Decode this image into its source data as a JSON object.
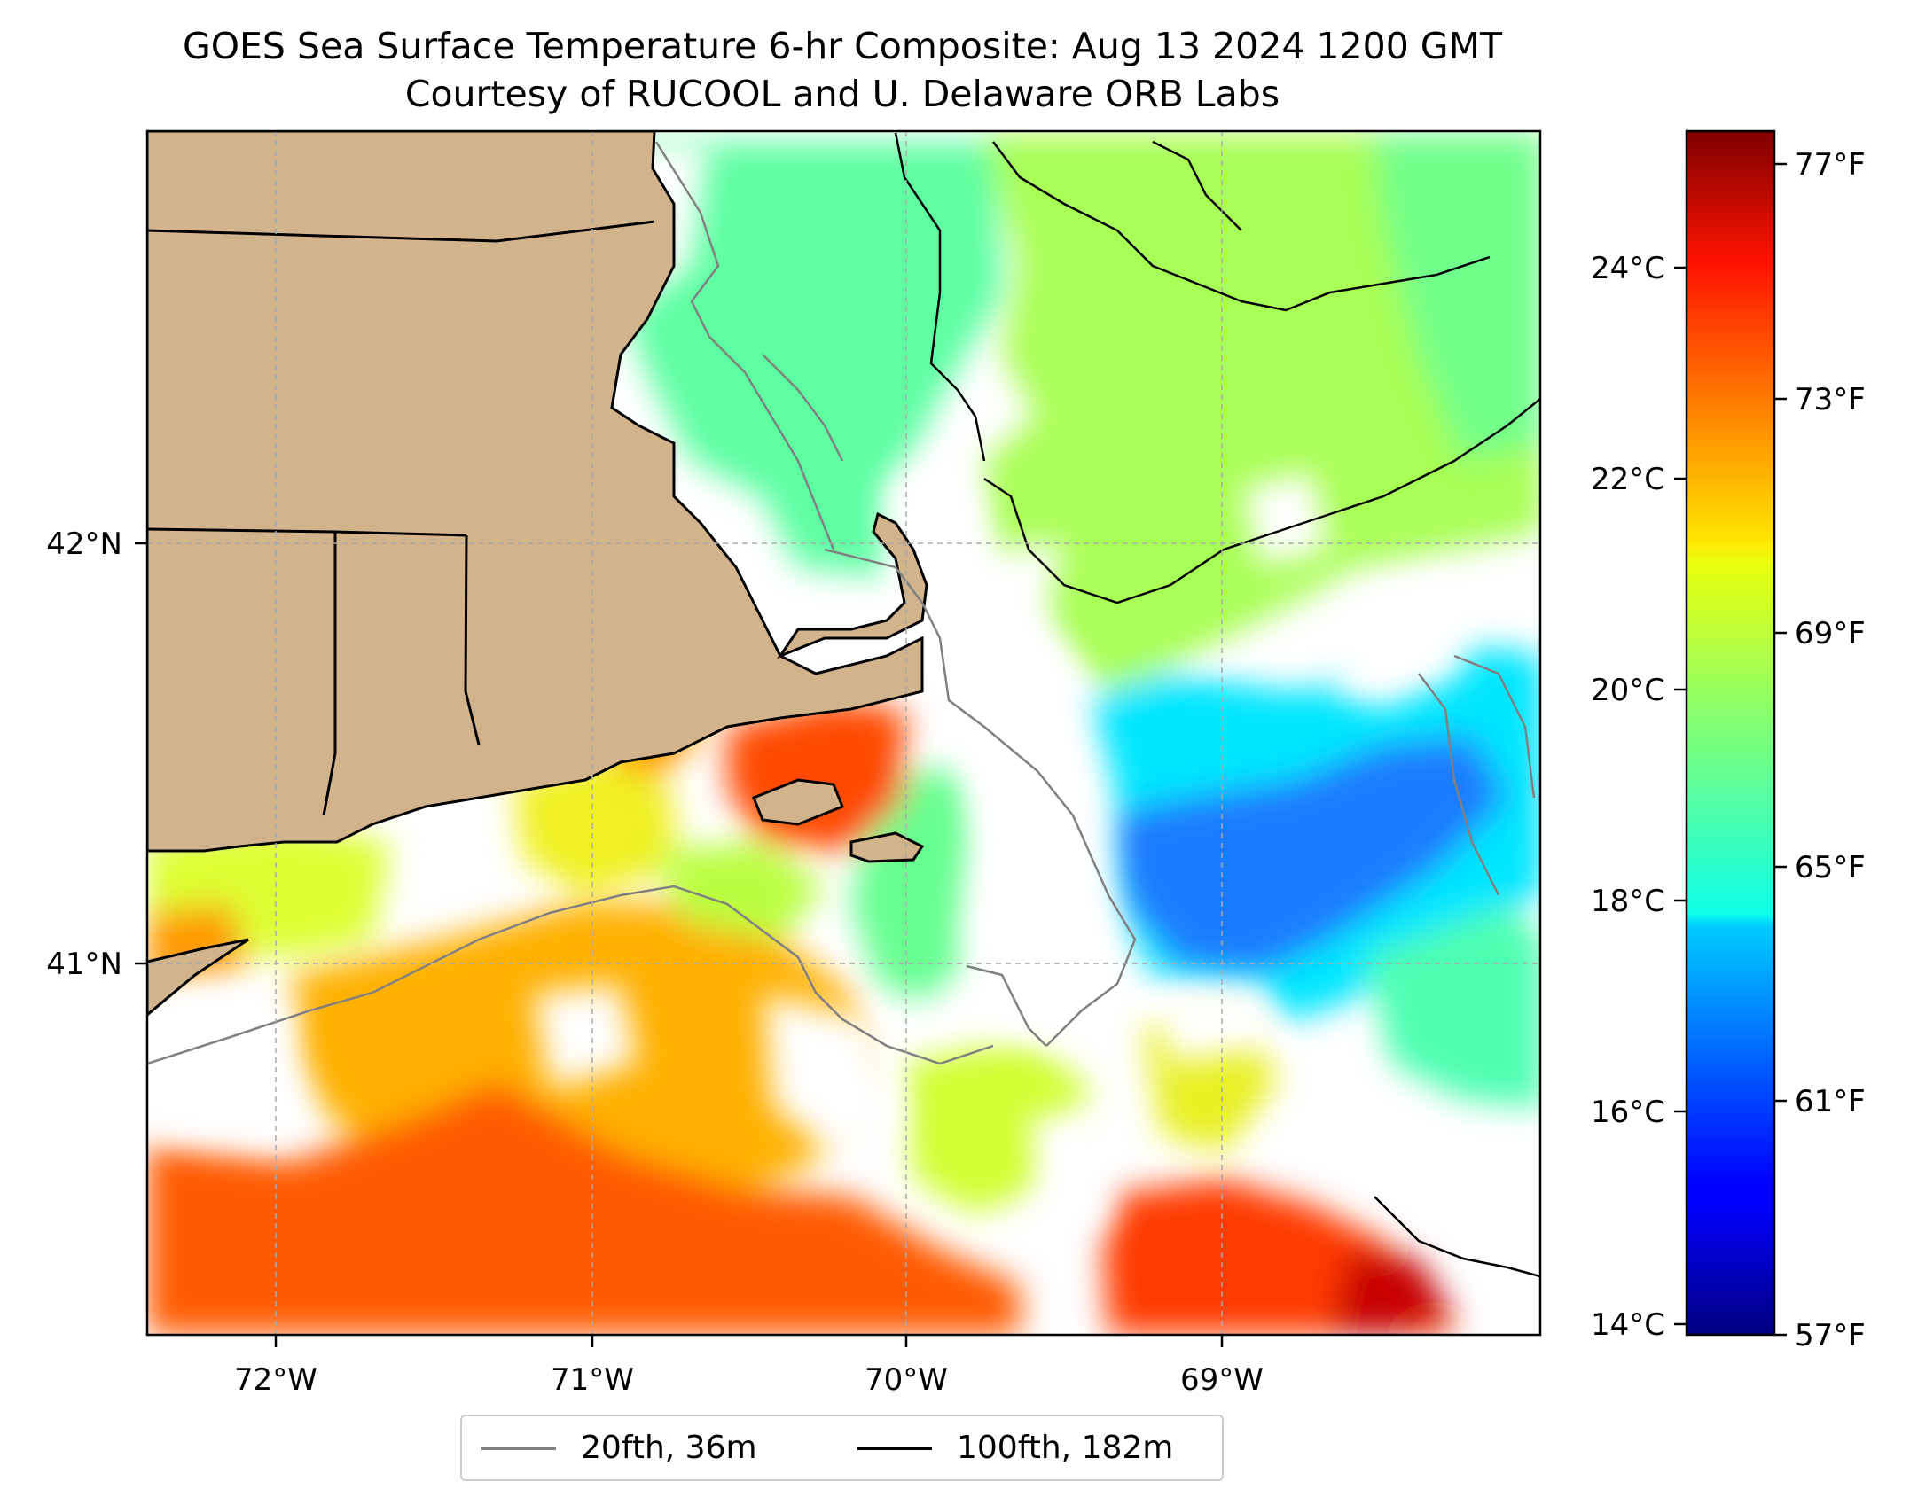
{
  "title": {
    "line1": "GOES Sea Surface Temperature 6-hr Composite: Aug 13 2024 1200 GMT",
    "line2": "Courtesy of RUCOOL and U. Delaware ORB Labs"
  },
  "map": {
    "lon_labels": [
      "72°W",
      "71°W",
      "70°W",
      "69°W"
    ],
    "lat_labels": [
      "42°N",
      "41°N"
    ],
    "extent": {
      "lon": [
        -72.4,
        -68.0
      ],
      "lat": [
        40.15,
        43.0
      ]
    },
    "land_color": "#d2b48c",
    "nodata_color": "#ffffff"
  },
  "legend": {
    "items": [
      {
        "label": "20fth, 36m",
        "color": "#808080"
      },
      {
        "label": "100fth, 182m",
        "color": "#000000"
      }
    ]
  },
  "colorbar": {
    "colormap": "jet",
    "range_c": [
      13.9,
      25.3
    ],
    "celsius_ticks": [
      "24°C",
      "22°C",
      "20°C",
      "18°C",
      "16°C",
      "14°C"
    ],
    "fahrenheit_ticks": [
      "77°F",
      "73°F",
      "69°F",
      "65°F",
      "61°F",
      "57°F"
    ]
  },
  "colors": {
    "cold": "#1e6bff",
    "cool": "#00e0ff",
    "mid": "#5dffa0",
    "mild": "#b0ff40",
    "warm": "#ffc000",
    "hot": "#ff4a00",
    "hottest": "#c00000"
  }
}
